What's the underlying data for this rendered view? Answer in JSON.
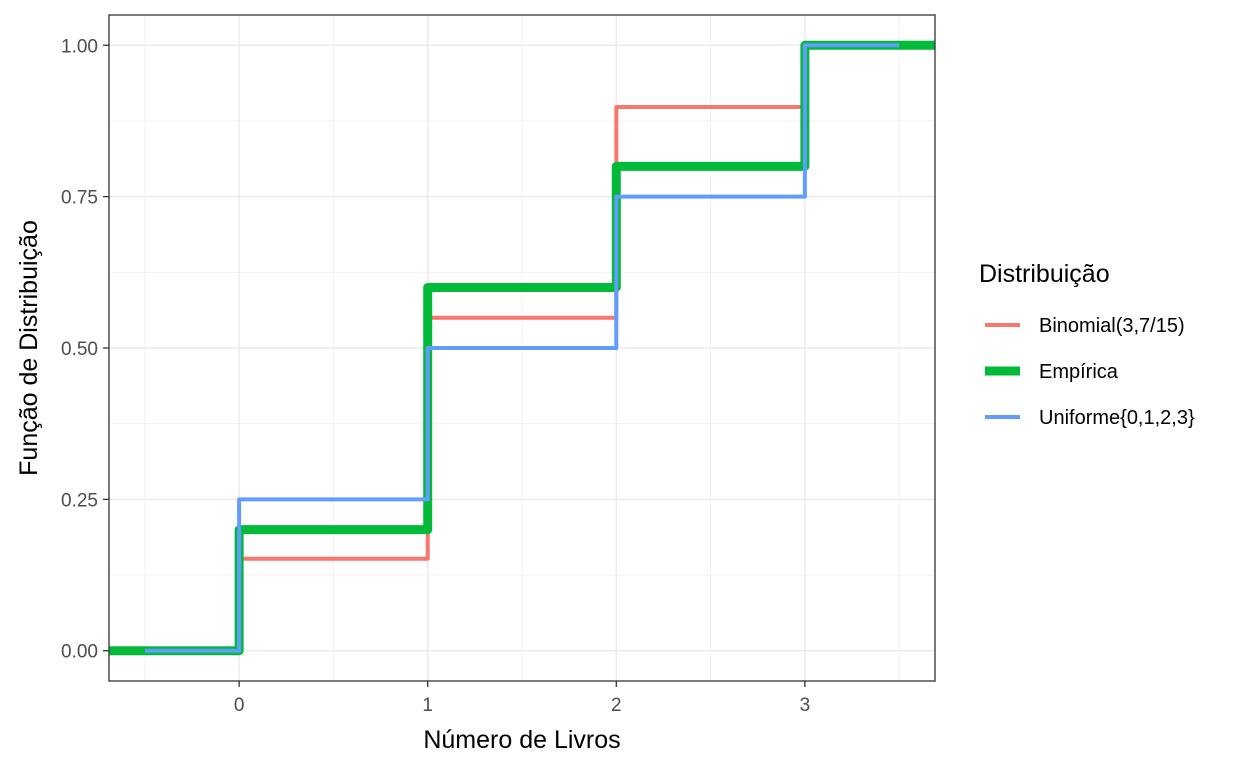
{
  "chart_data": {
    "type": "line",
    "step": true,
    "xlabel": "Número de Livros",
    "ylabel": "Função de Distribuição",
    "xlim": [
      -0.69,
      3.69
    ],
    "ylim": [
      -0.05,
      1.05
    ],
    "x_ticks": [
      0,
      1,
      2,
      3
    ],
    "x_tick_labels": [
      "0",
      "1",
      "2",
      "3"
    ],
    "y_ticks": [
      0,
      0.25,
      0.5,
      0.75,
      1
    ],
    "y_tick_labels": [
      "0.00",
      "0.25",
      "0.50",
      "0.75",
      "1.00"
    ],
    "x_minor_ticks": [
      -0.5,
      0.5,
      1.5,
      2.5,
      3.5
    ],
    "y_minor_ticks": [
      0.125,
      0.375,
      0.625,
      0.875
    ],
    "grid": true,
    "legend": {
      "title": "Distribuição",
      "position": "right"
    },
    "series": [
      {
        "name": "Binomial(3,7/15)",
        "color": "#F8766D",
        "line_width": "thin",
        "x": [
          -0.5,
          0,
          1,
          2,
          3,
          3.5
        ],
        "y": [
          0,
          0.152,
          0.55,
          0.898,
          1,
          1
        ]
      },
      {
        "name": "Empírica",
        "color": "#00BA38",
        "line_width": "thick",
        "x": [
          -0.69,
          0,
          1,
          2,
          3,
          3.69
        ],
        "y": [
          0,
          0.2,
          0.6,
          0.8,
          1,
          1
        ]
      },
      {
        "name": "Uniforme{0,1,2,3}",
        "color": "#619CFF",
        "line_width": "thin",
        "x": [
          -0.5,
          0,
          1,
          2,
          3,
          3.5
        ],
        "y": [
          0,
          0.25,
          0.5,
          0.75,
          1,
          1
        ]
      }
    ]
  }
}
